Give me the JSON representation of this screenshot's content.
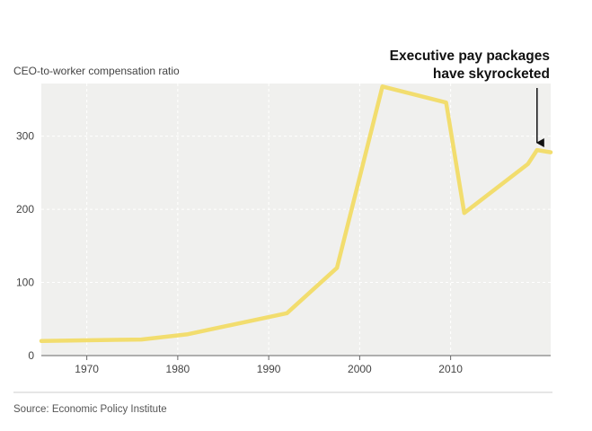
{
  "chart_data": {
    "type": "line",
    "ylabel": "CEO-to-worker compensation ratio",
    "xlim": [
      1965,
      2021
    ],
    "ylim": [
      0,
      372
    ],
    "x_ticks": [
      1970,
      1980,
      1990,
      2000,
      2010
    ],
    "x_tick_labels": [
      "1970",
      "1980",
      "1990",
      "2000",
      "2010"
    ],
    "y_ticks": [
      0,
      100,
      200,
      300
    ],
    "y_tick_labels": [
      "0",
      "100",
      "200",
      "300"
    ],
    "grid": true,
    "series": [
      {
        "color": "#f2dd6e",
        "x": [
          1965,
          1976,
          1981,
          1992,
          1997.5,
          2002.5,
          2009.5,
          2011.5,
          2018.5,
          2019.5,
          2021
        ],
        "y": [
          20,
          22,
          29,
          58,
          120,
          368,
          346,
          195,
          262,
          281,
          278
        ]
      }
    ],
    "annotation": {
      "lines": [
        "Executive pay packages",
        "have skyrocketed"
      ],
      "arrow_x": 2019.5,
      "arrow_target_y": 291
    },
    "source": "Source: Economic Policy Institute"
  },
  "colors": {
    "plot_background": "#f0f0ee",
    "line": "#f2dd6e",
    "annotation": "#111111"
  }
}
